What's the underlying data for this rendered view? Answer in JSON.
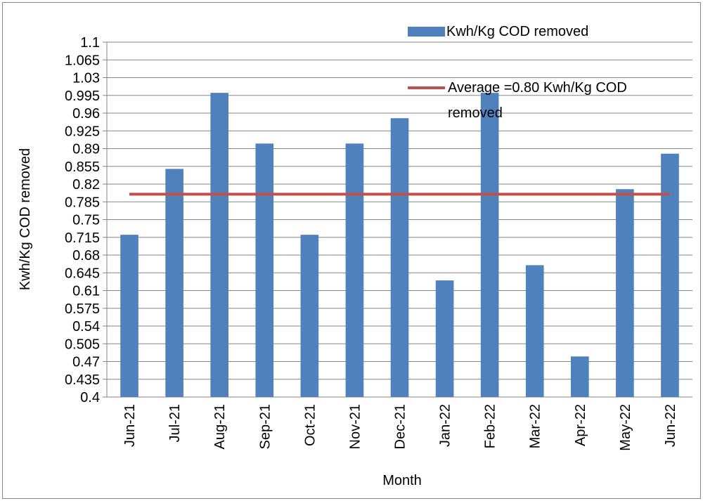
{
  "chart_data": {
    "type": "bar",
    "x_label": "Month",
    "y_label": "Kwh/Kg COD removed",
    "categories": [
      "Jun-21",
      "Jul-21",
      "Aug-21",
      "Sep-21",
      "Oct-21",
      "Nov-21",
      "Dec-21",
      "Jan-22",
      "Feb-22",
      "Mar-22",
      "Apr-22",
      "May-22",
      "Jun-22"
    ],
    "series": [
      {
        "name": "Kwh/Kg COD removed",
        "type": "bar",
        "color": "#4f81bd",
        "values": [
          0.72,
          0.85,
          1.0,
          0.9,
          0.72,
          0.9,
          0.95,
          0.63,
          1.0,
          0.66,
          0.48,
          0.81,
          0.88
        ]
      },
      {
        "name": "Average =0.80 Kwh/Kg COD removed",
        "type": "line",
        "color": "#c0504d",
        "values": [
          0.8,
          0.8,
          0.8,
          0.8,
          0.8,
          0.8,
          0.8,
          0.8,
          0.8,
          0.8,
          0.8,
          0.8,
          0.8
        ]
      }
    ],
    "ylim": [
      0.4,
      1.1
    ],
    "yticks": [
      0.4,
      0.435,
      0.47,
      0.505,
      0.54,
      0.575,
      0.61,
      0.645,
      0.68,
      0.715,
      0.75,
      0.785,
      0.82,
      0.855,
      0.89,
      0.925,
      0.96,
      0.995,
      1.03,
      1.065,
      1.1
    ],
    "grid": true
  }
}
